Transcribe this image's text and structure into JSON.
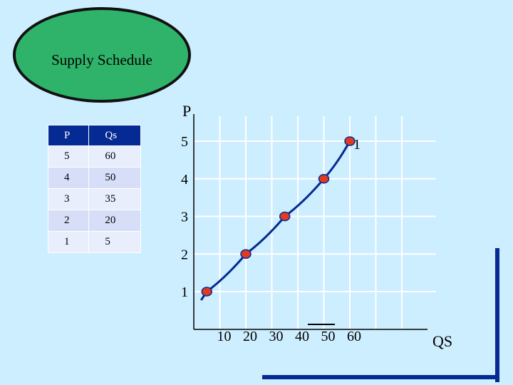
{
  "badge": {
    "label": "Supply Schedule"
  },
  "schedule": {
    "headers": [
      "P",
      "Qs"
    ],
    "rows": [
      [
        "5",
        "60"
      ],
      [
        "4",
        "50"
      ],
      [
        "3",
        "35"
      ],
      [
        "2",
        "20"
      ],
      [
        "1",
        "5"
      ]
    ]
  },
  "chart_data": {
    "type": "line",
    "title": "",
    "xlabel": "QS",
    "ylabel": "P",
    "x_ticks": [
      "10",
      "20",
      "30",
      "40",
      "50",
      "60"
    ],
    "y_ticks": [
      "5",
      "4",
      "3",
      "2",
      "1"
    ],
    "xlim": [
      0,
      60
    ],
    "ylim": [
      1,
      5
    ],
    "grid": true,
    "curve_label": "1",
    "series": [
      {
        "x": [
          5,
          20,
          35,
          50,
          60
        ],
        "y": [
          1,
          2,
          3,
          4,
          5
        ]
      }
    ],
    "colors": {
      "curve": "#062a93",
      "point": "#e03b22",
      "grid": "#ffffff"
    }
  }
}
